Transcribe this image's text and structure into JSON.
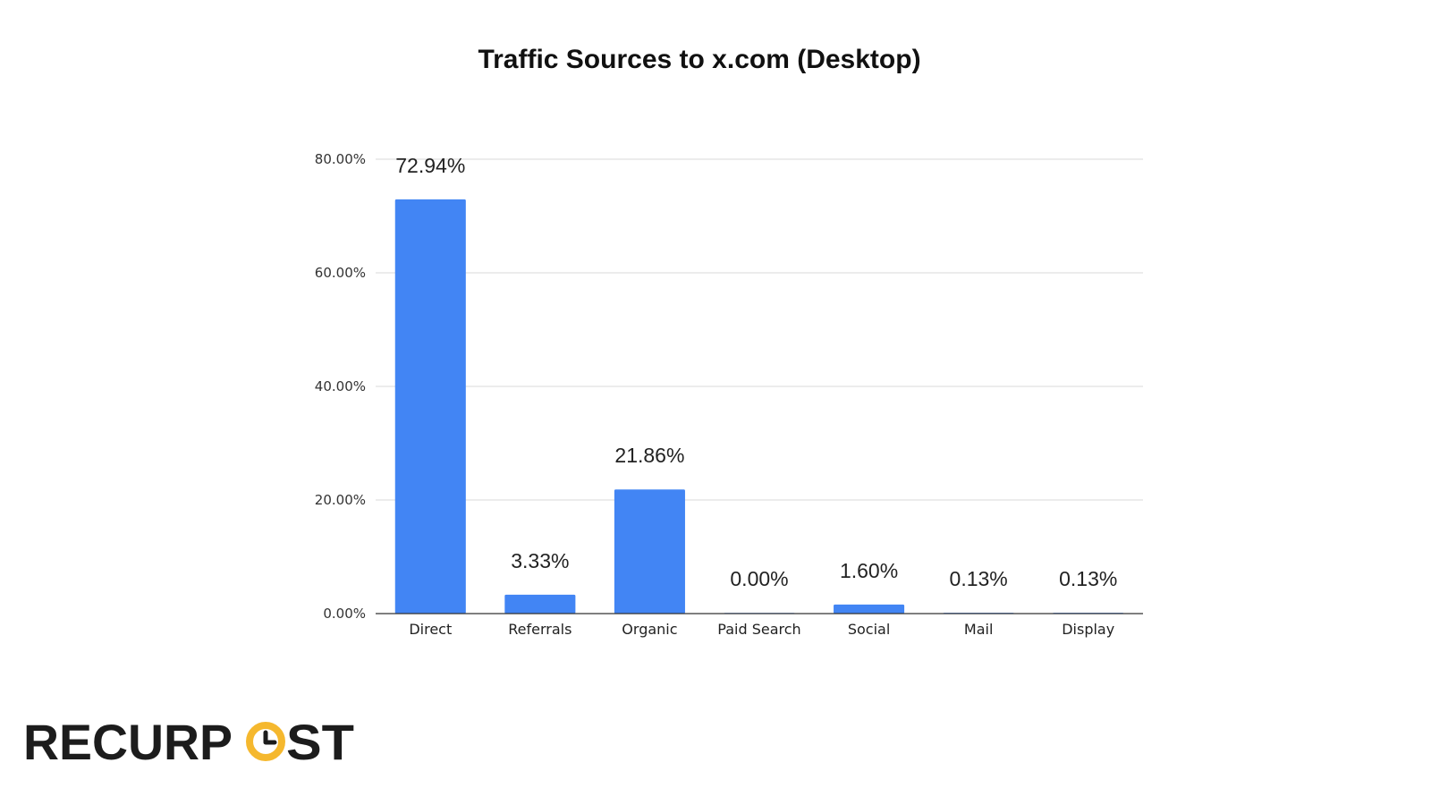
{
  "colors": {
    "bar": "#4285f4",
    "logo_dark": "#1c1c1c",
    "logo_accent": "#f5b82e"
  },
  "chart_data": {
    "type": "bar",
    "title": "Traffic Sources to x.com (Desktop)",
    "xlabel": "",
    "ylabel": "",
    "categories": [
      "Direct",
      "Referrals",
      "Organic",
      "Paid Search",
      "Social",
      "Mail",
      "Display"
    ],
    "values": [
      72.94,
      3.33,
      21.86,
      0.0,
      1.6,
      0.13,
      0.13
    ],
    "data_labels": [
      "72.94%",
      "3.33%",
      "21.86%",
      "0.00%",
      "1.60%",
      "0.13%",
      "0.13%"
    ],
    "ylim": [
      0,
      80
    ],
    "yticks": [
      0,
      20,
      40,
      60,
      80
    ],
    "ytick_labels": [
      "0.00%",
      "20.00%",
      "40.00%",
      "60.00%",
      "80.00%"
    ],
    "grid": true,
    "legend": "none"
  },
  "logo": {
    "part1": "RECURP",
    "part2": "ST"
  }
}
